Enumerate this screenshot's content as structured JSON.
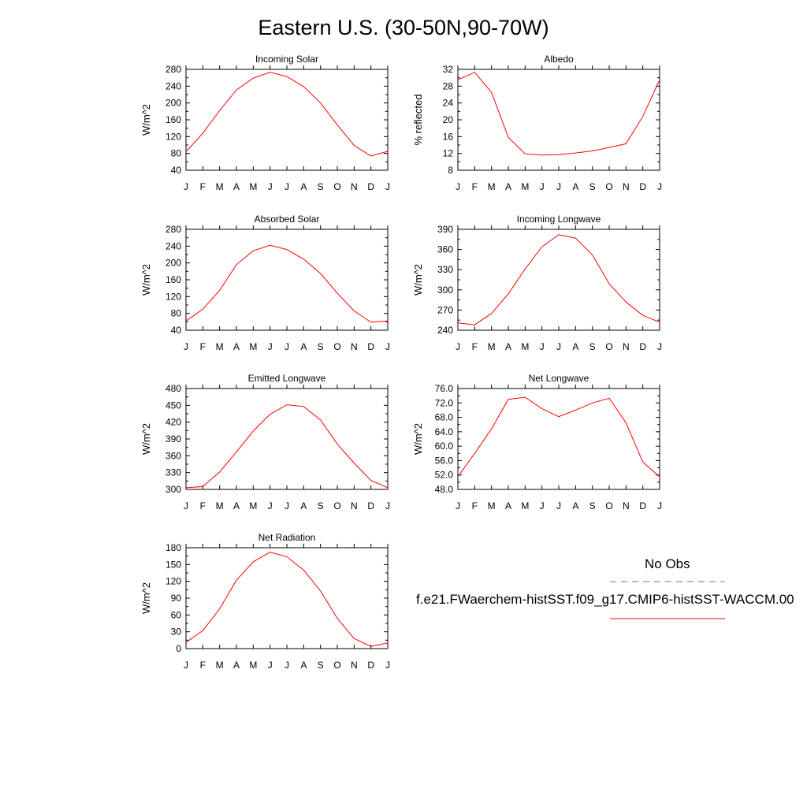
{
  "title": "Eastern U.S. (30-50N,90-70W)",
  "legend": {
    "obs_label": "No Obs",
    "obs_color": "#6b6bd6",
    "model_label": "f.e21.FWaerchem-histSST.f09_g17.CMIP6-histSST-WACCM.00",
    "model_color": "#ff0000"
  },
  "chart_data": [
    {
      "type": "line",
      "title": "Incoming Solar",
      "ylabel": "W/m^2",
      "x": [
        "J",
        "F",
        "M",
        "A",
        "M",
        "J",
        "J",
        "A",
        "S",
        "O",
        "N",
        "D",
        "J"
      ],
      "ylim": [
        40,
        280
      ],
      "yticks": [
        "40",
        "80",
        "120",
        "160",
        "200",
        "240",
        "280"
      ],
      "series": [
        {
          "values": [
            84,
            128,
            182,
            231,
            259,
            273,
            263,
            239,
            200,
            148,
            99,
            74,
            85
          ]
        }
      ]
    },
    {
      "type": "line",
      "title": "Albedo",
      "ylabel": "% reflected",
      "x": [
        "J",
        "F",
        "M",
        "A",
        "M",
        "J",
        "J",
        "A",
        "S",
        "O",
        "N",
        "D",
        "J"
      ],
      "ylim": [
        8,
        32
      ],
      "yticks": [
        "8",
        "12",
        "16",
        "20",
        "24",
        "28",
        "32"
      ],
      "series": [
        {
          "values": [
            29.5,
            31.3,
            26.5,
            15.8,
            11.9,
            11.6,
            11.7,
            12.1,
            12.6,
            13.4,
            14.3,
            20.8,
            29.5
          ]
        }
      ]
    },
    {
      "type": "line",
      "title": "Absorbed Solar",
      "ylabel": "W/m^2",
      "x": [
        "J",
        "F",
        "M",
        "A",
        "M",
        "J",
        "J",
        "A",
        "S",
        "O",
        "N",
        "D",
        "J"
      ],
      "ylim": [
        40,
        280
      ],
      "yticks": [
        "40",
        "80",
        "120",
        "160",
        "200",
        "240",
        "280"
      ],
      "series": [
        {
          "values": [
            62,
            90,
            135,
            196,
            229,
            242,
            232,
            209,
            175,
            128,
            86,
            59,
            62
          ]
        }
      ]
    },
    {
      "type": "line",
      "title": "Incoming Longwave",
      "ylabel": "W/m^2",
      "x": [
        "J",
        "F",
        "M",
        "A",
        "M",
        "J",
        "J",
        "A",
        "S",
        "O",
        "N",
        "D",
        "J"
      ],
      "ylim": [
        240,
        390
      ],
      "yticks": [
        "240",
        "270",
        "300",
        "330",
        "360",
        "390"
      ],
      "series": [
        {
          "values": [
            251,
            248,
            265,
            294,
            331,
            364,
            382,
            377,
            352,
            309,
            282,
            262,
            252
          ]
        }
      ]
    },
    {
      "type": "line",
      "title": "Emitted Longwave",
      "ylabel": "W/m^2",
      "x": [
        "J",
        "F",
        "M",
        "A",
        "M",
        "J",
        "J",
        "A",
        "S",
        "O",
        "N",
        "D",
        "J"
      ],
      "ylim": [
        300,
        480
      ],
      "yticks": [
        "300",
        "330",
        "360",
        "390",
        "420",
        "450",
        "480"
      ],
      "series": [
        {
          "values": [
            303,
            305,
            331,
            367,
            404,
            434,
            451,
            448,
            424,
            381,
            347,
            316,
            303
          ]
        }
      ]
    },
    {
      "type": "line",
      "title": "Net Longwave",
      "ylabel": "W/m^2",
      "x": [
        "J",
        "F",
        "M",
        "A",
        "M",
        "J",
        "J",
        "A",
        "S",
        "O",
        "N",
        "D",
        "J"
      ],
      "ylim": [
        48,
        76
      ],
      "yticks": [
        "48.0",
        "52.0",
        "56.0",
        "60.0",
        "64.0",
        "68.0",
        "72.0",
        "76.0"
      ],
      "series": [
        {
          "values": [
            51.5,
            58.0,
            64.8,
            73.0,
            73.6,
            70.4,
            68.2,
            70.0,
            72.0,
            73.3,
            66.5,
            55.6,
            51.5
          ]
        }
      ]
    },
    {
      "type": "line",
      "title": "Net Radiation",
      "ylabel": "W/m^2",
      "x": [
        "J",
        "F",
        "M",
        "A",
        "M",
        "J",
        "J",
        "A",
        "S",
        "O",
        "N",
        "D",
        "J"
      ],
      "ylim": [
        0,
        180
      ],
      "yticks": [
        "0",
        "30",
        "60",
        "90",
        "120",
        "150",
        "180"
      ],
      "series": [
        {
          "values": [
            11,
            32,
            71,
            122,
            155,
            172,
            164,
            140,
            103,
            54,
            18,
            4,
            10
          ]
        }
      ]
    }
  ]
}
